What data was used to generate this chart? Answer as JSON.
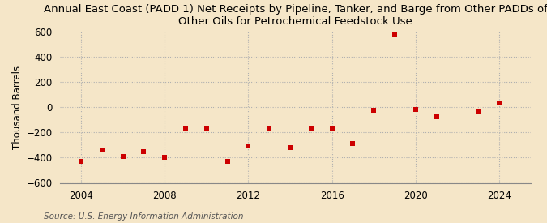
{
  "title": "Annual East Coast (PADD 1) Net Receipts by Pipeline, Tanker, and Barge from Other PADDs of\nOther Oils for Petrochemical Feedstock Use",
  "ylabel": "Thousand Barrels",
  "source": "Source: U.S. Energy Information Administration",
  "background_color": "#f5e6c8",
  "plot_background_color": "#f5e6c8",
  "marker_color": "#cc0000",
  "years": [
    2004,
    2005,
    2006,
    2007,
    2008,
    2009,
    2010,
    2011,
    2012,
    2013,
    2014,
    2015,
    2016,
    2017,
    2018,
    2019,
    2020,
    2021,
    2023,
    2024
  ],
  "values": [
    -430,
    -340,
    -390,
    -355,
    -400,
    -170,
    -165,
    -430,
    -310,
    -165,
    -320,
    -165,
    -170,
    -290,
    -25,
    570,
    -20,
    -80,
    -30,
    30
  ],
  "ylim": [
    -600,
    600
  ],
  "xlim": [
    2003.0,
    2025.5
  ],
  "yticks": [
    -600,
    -400,
    -200,
    0,
    200,
    400,
    600
  ],
  "xticks": [
    2004,
    2008,
    2012,
    2016,
    2020,
    2024
  ],
  "grid_color": "#b0b0b0",
  "title_fontsize": 9.5,
  "axis_fontsize": 8.5,
  "source_fontsize": 7.5
}
